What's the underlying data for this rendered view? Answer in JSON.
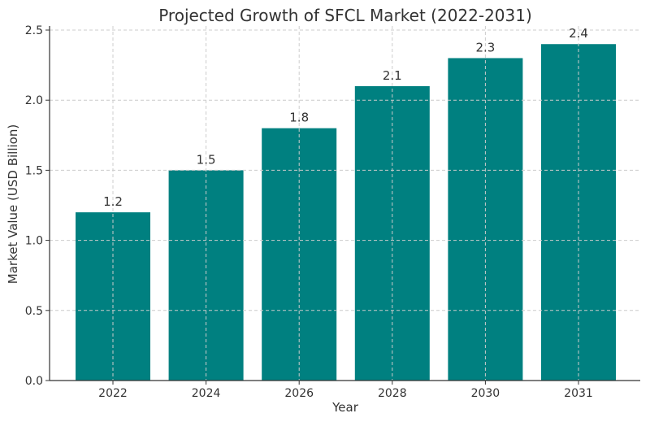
{
  "chart_data": {
    "type": "bar",
    "title": "Projected Growth of SFCL Market (2022-2031)",
    "xlabel": "Year",
    "ylabel": "Market Value (USD Billion)",
    "categories": [
      "2022",
      "2024",
      "2026",
      "2028",
      "2030",
      "2031"
    ],
    "values": [
      1.2,
      1.5,
      1.8,
      2.1,
      2.3,
      2.4
    ],
    "data_labels": [
      "1.2",
      "1.5",
      "1.8",
      "2.1",
      "2.3",
      "2.4"
    ],
    "ylim": [
      0,
      2.5
    ],
    "yticks": [
      0,
      0.5,
      1.0,
      1.5,
      2.0,
      2.5
    ],
    "ytick_labels": [
      "0.0",
      "0.5",
      "1.0",
      "1.5",
      "2.0",
      "2.5"
    ],
    "grid": true,
    "bar_color": "#008080"
  }
}
